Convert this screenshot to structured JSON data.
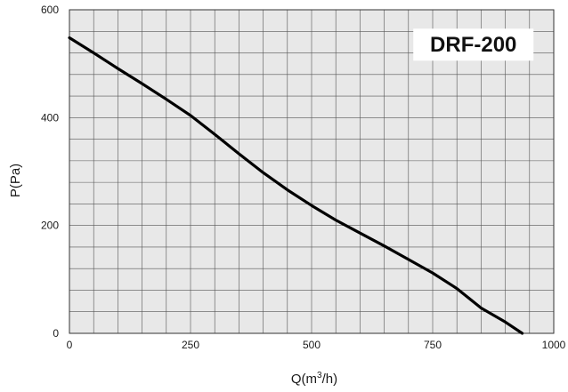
{
  "chart_data": {
    "type": "line",
    "title": "",
    "annotation": "DRF-200",
    "xlabel": "Q(m³/h)",
    "xlabel_main": "Q(m",
    "xlabel_sup": "3",
    "xlabel_tail": "/h)",
    "ylabel": "P(Pa)",
    "xlim": [
      0,
      1000
    ],
    "ylim": [
      0,
      600
    ],
    "x_ticks": [
      0,
      250,
      500,
      750,
      1000
    ],
    "y_ticks": [
      0,
      200,
      400,
      600
    ],
    "x_tick_labels": [
      "0",
      "250",
      "500",
      "750",
      "1000"
    ],
    "y_tick_labels": [
      "0",
      "200",
      "400",
      "600"
    ],
    "grid": true,
    "series": [
      {
        "x": [
          0,
          50,
          100,
          150,
          200,
          250,
          300,
          350,
          400,
          450,
          500,
          550,
          600,
          650,
          700,
          750,
          800,
          850,
          900,
          935
        ],
        "y": [
          548,
          520,
          491,
          463,
          434,
          404,
          369,
          333,
          298,
          266,
          237,
          210,
          186,
          162,
          137,
          112,
          83,
          47,
          21,
          0
        ]
      }
    ],
    "colors": {
      "line": "#000000",
      "plot_bg": "#e8e8e8",
      "grid": "#555555"
    }
  }
}
